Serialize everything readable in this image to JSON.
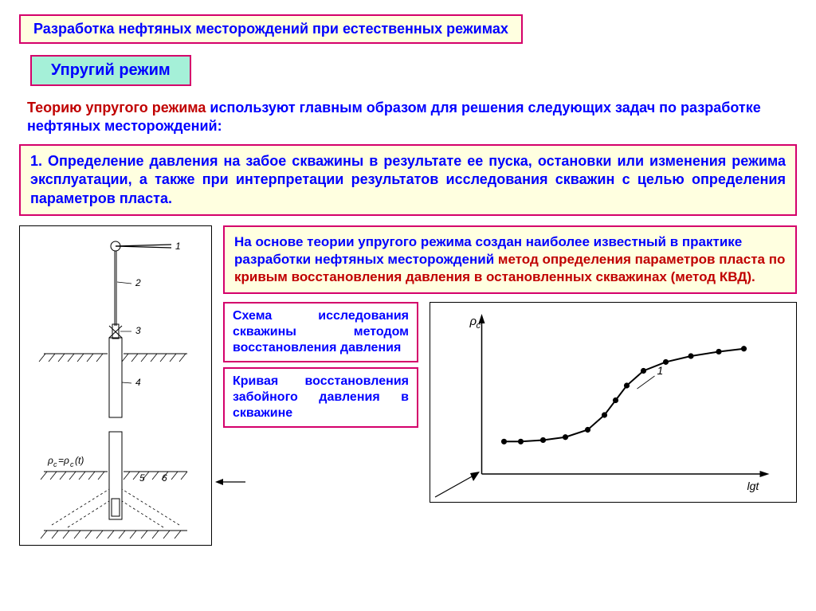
{
  "title": "Разработка нефтяных месторождений при естественных режимах",
  "subtitle": "Упругий режим",
  "intro_red": "Теорию упругого режима",
  "intro_blue": " используют главным образом для решения следующих задач по разработке нефтяных месторождений:",
  "task1": "1. Определение давления на забое скважины в результате ее пуска, остановки или изменения режима эксплуатации, а также при интерпретации результатов исследования скважин с целью определения параметров пласта.",
  "method_blue": "На основе теории упругого режима создан наиболее известный в практике разработки нефтяных месторождений ",
  "method_red": "метод определения параметров пласта по кривым восстановления  давления в остановленных скважинах (метод КВД).",
  "caption1": "Схема исследования скважины методом восстановления давления",
  "caption2": "Кривая восстановления забойного давления в скважине",
  "colors": {
    "border": "#d4006b",
    "yellow_bg": "#ffffe0",
    "teal_bg": "#a5f0d8",
    "blue_text": "#0000ff",
    "red_text": "#c00000"
  },
  "well_diagram": {
    "type": "diagram",
    "labels": [
      "1",
      "2",
      "3",
      "4",
      "5",
      "6"
    ],
    "pc_label": "ρс=ρс(t)",
    "description": "Well schematic with pulley (1), rod (2), packer (3), tubing (4), perforations/ground hatch (5,6)"
  },
  "pressure_curve": {
    "type": "scatter-line",
    "y_label": "ρс",
    "x_label": "lgt",
    "series_label": "1",
    "points": [
      {
        "x": 0.08,
        "y": 0.22
      },
      {
        "x": 0.14,
        "y": 0.22
      },
      {
        "x": 0.22,
        "y": 0.23
      },
      {
        "x": 0.3,
        "y": 0.25
      },
      {
        "x": 0.38,
        "y": 0.3
      },
      {
        "x": 0.44,
        "y": 0.4
      },
      {
        "x": 0.48,
        "y": 0.5
      },
      {
        "x": 0.52,
        "y": 0.6
      },
      {
        "x": 0.58,
        "y": 0.7
      },
      {
        "x": 0.66,
        "y": 0.76
      },
      {
        "x": 0.75,
        "y": 0.8
      },
      {
        "x": 0.85,
        "y": 0.83
      },
      {
        "x": 0.94,
        "y": 0.85
      }
    ],
    "line_color": "#000000",
    "marker_style": "circle",
    "marker_fill": "#000000",
    "marker_size": 5
  }
}
